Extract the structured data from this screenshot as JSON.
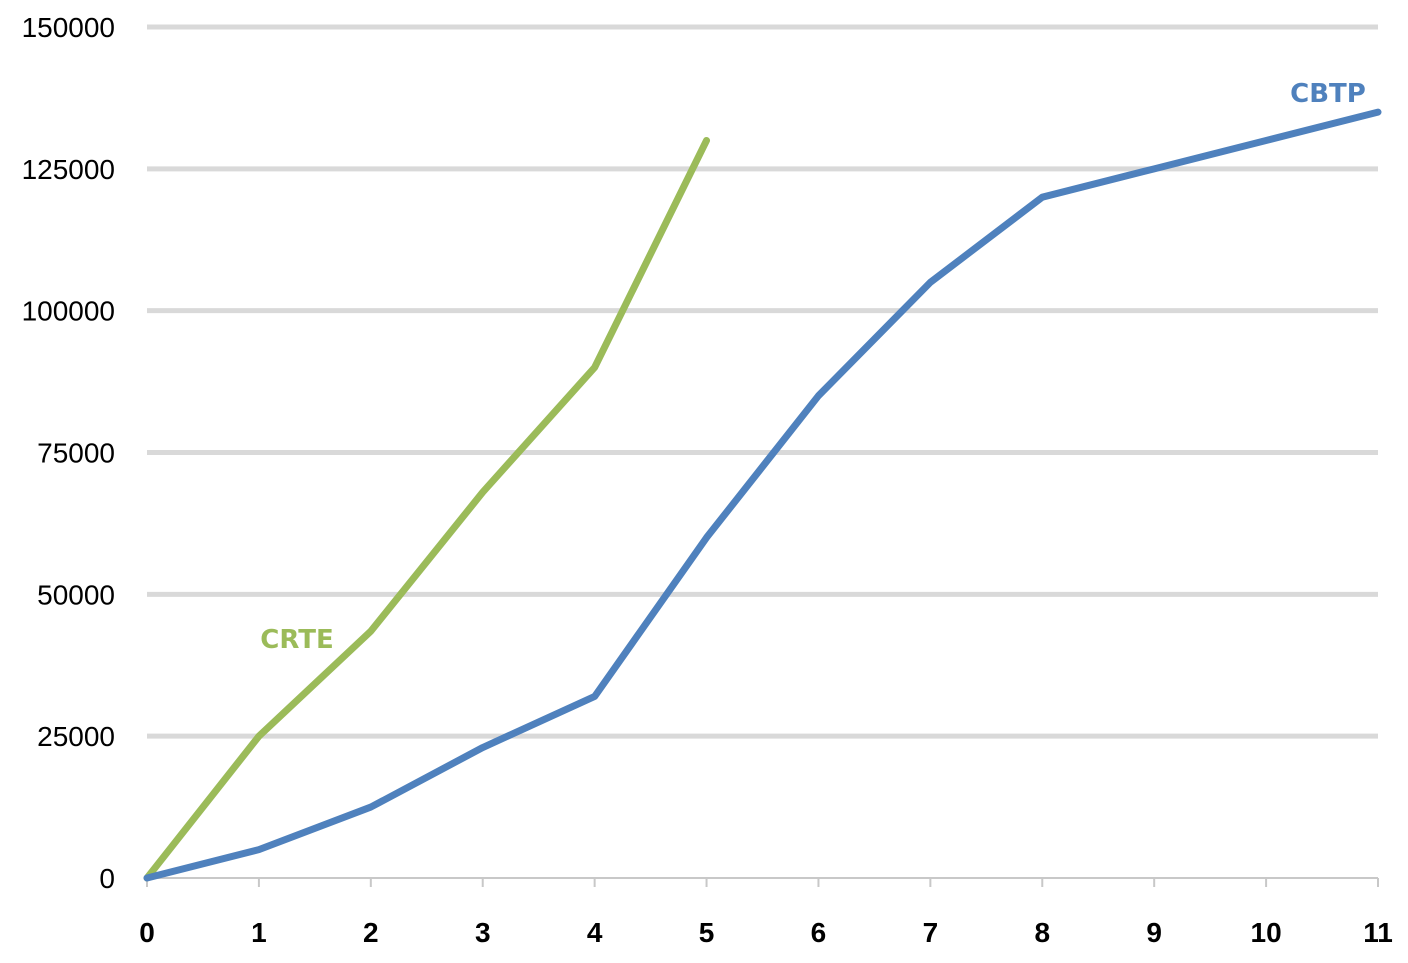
{
  "chart_data": {
    "type": "line",
    "title": "",
    "xlabel": "",
    "ylabel": "",
    "xlim": [
      0,
      11
    ],
    "ylim": [
      0,
      150000
    ],
    "x_ticks": [
      "0",
      "1",
      "2",
      "3",
      "4",
      "5",
      "6",
      "7",
      "8",
      "9",
      "10",
      "11"
    ],
    "y_ticks": [
      "0",
      "25000",
      "50000",
      "75000",
      "100000",
      "125000",
      "150000"
    ],
    "grid": true,
    "legend": "none",
    "series": [
      {
        "name": "CRTE",
        "color": "#9bbb59",
        "x": [
          0,
          1,
          2,
          3,
          4,
          5
        ],
        "y": [
          0,
          25000,
          43500,
          68000,
          90000,
          130000
        ]
      },
      {
        "name": "CBTP",
        "color": "#4f81bd",
        "x": [
          0,
          1,
          2,
          3,
          4,
          5,
          6,
          7,
          8,
          9,
          10,
          11
        ],
        "y": [
          0,
          5000,
          12500,
          23000,
          32000,
          60000,
          85000,
          105000,
          120000,
          125000,
          130000,
          135000
        ]
      }
    ]
  }
}
